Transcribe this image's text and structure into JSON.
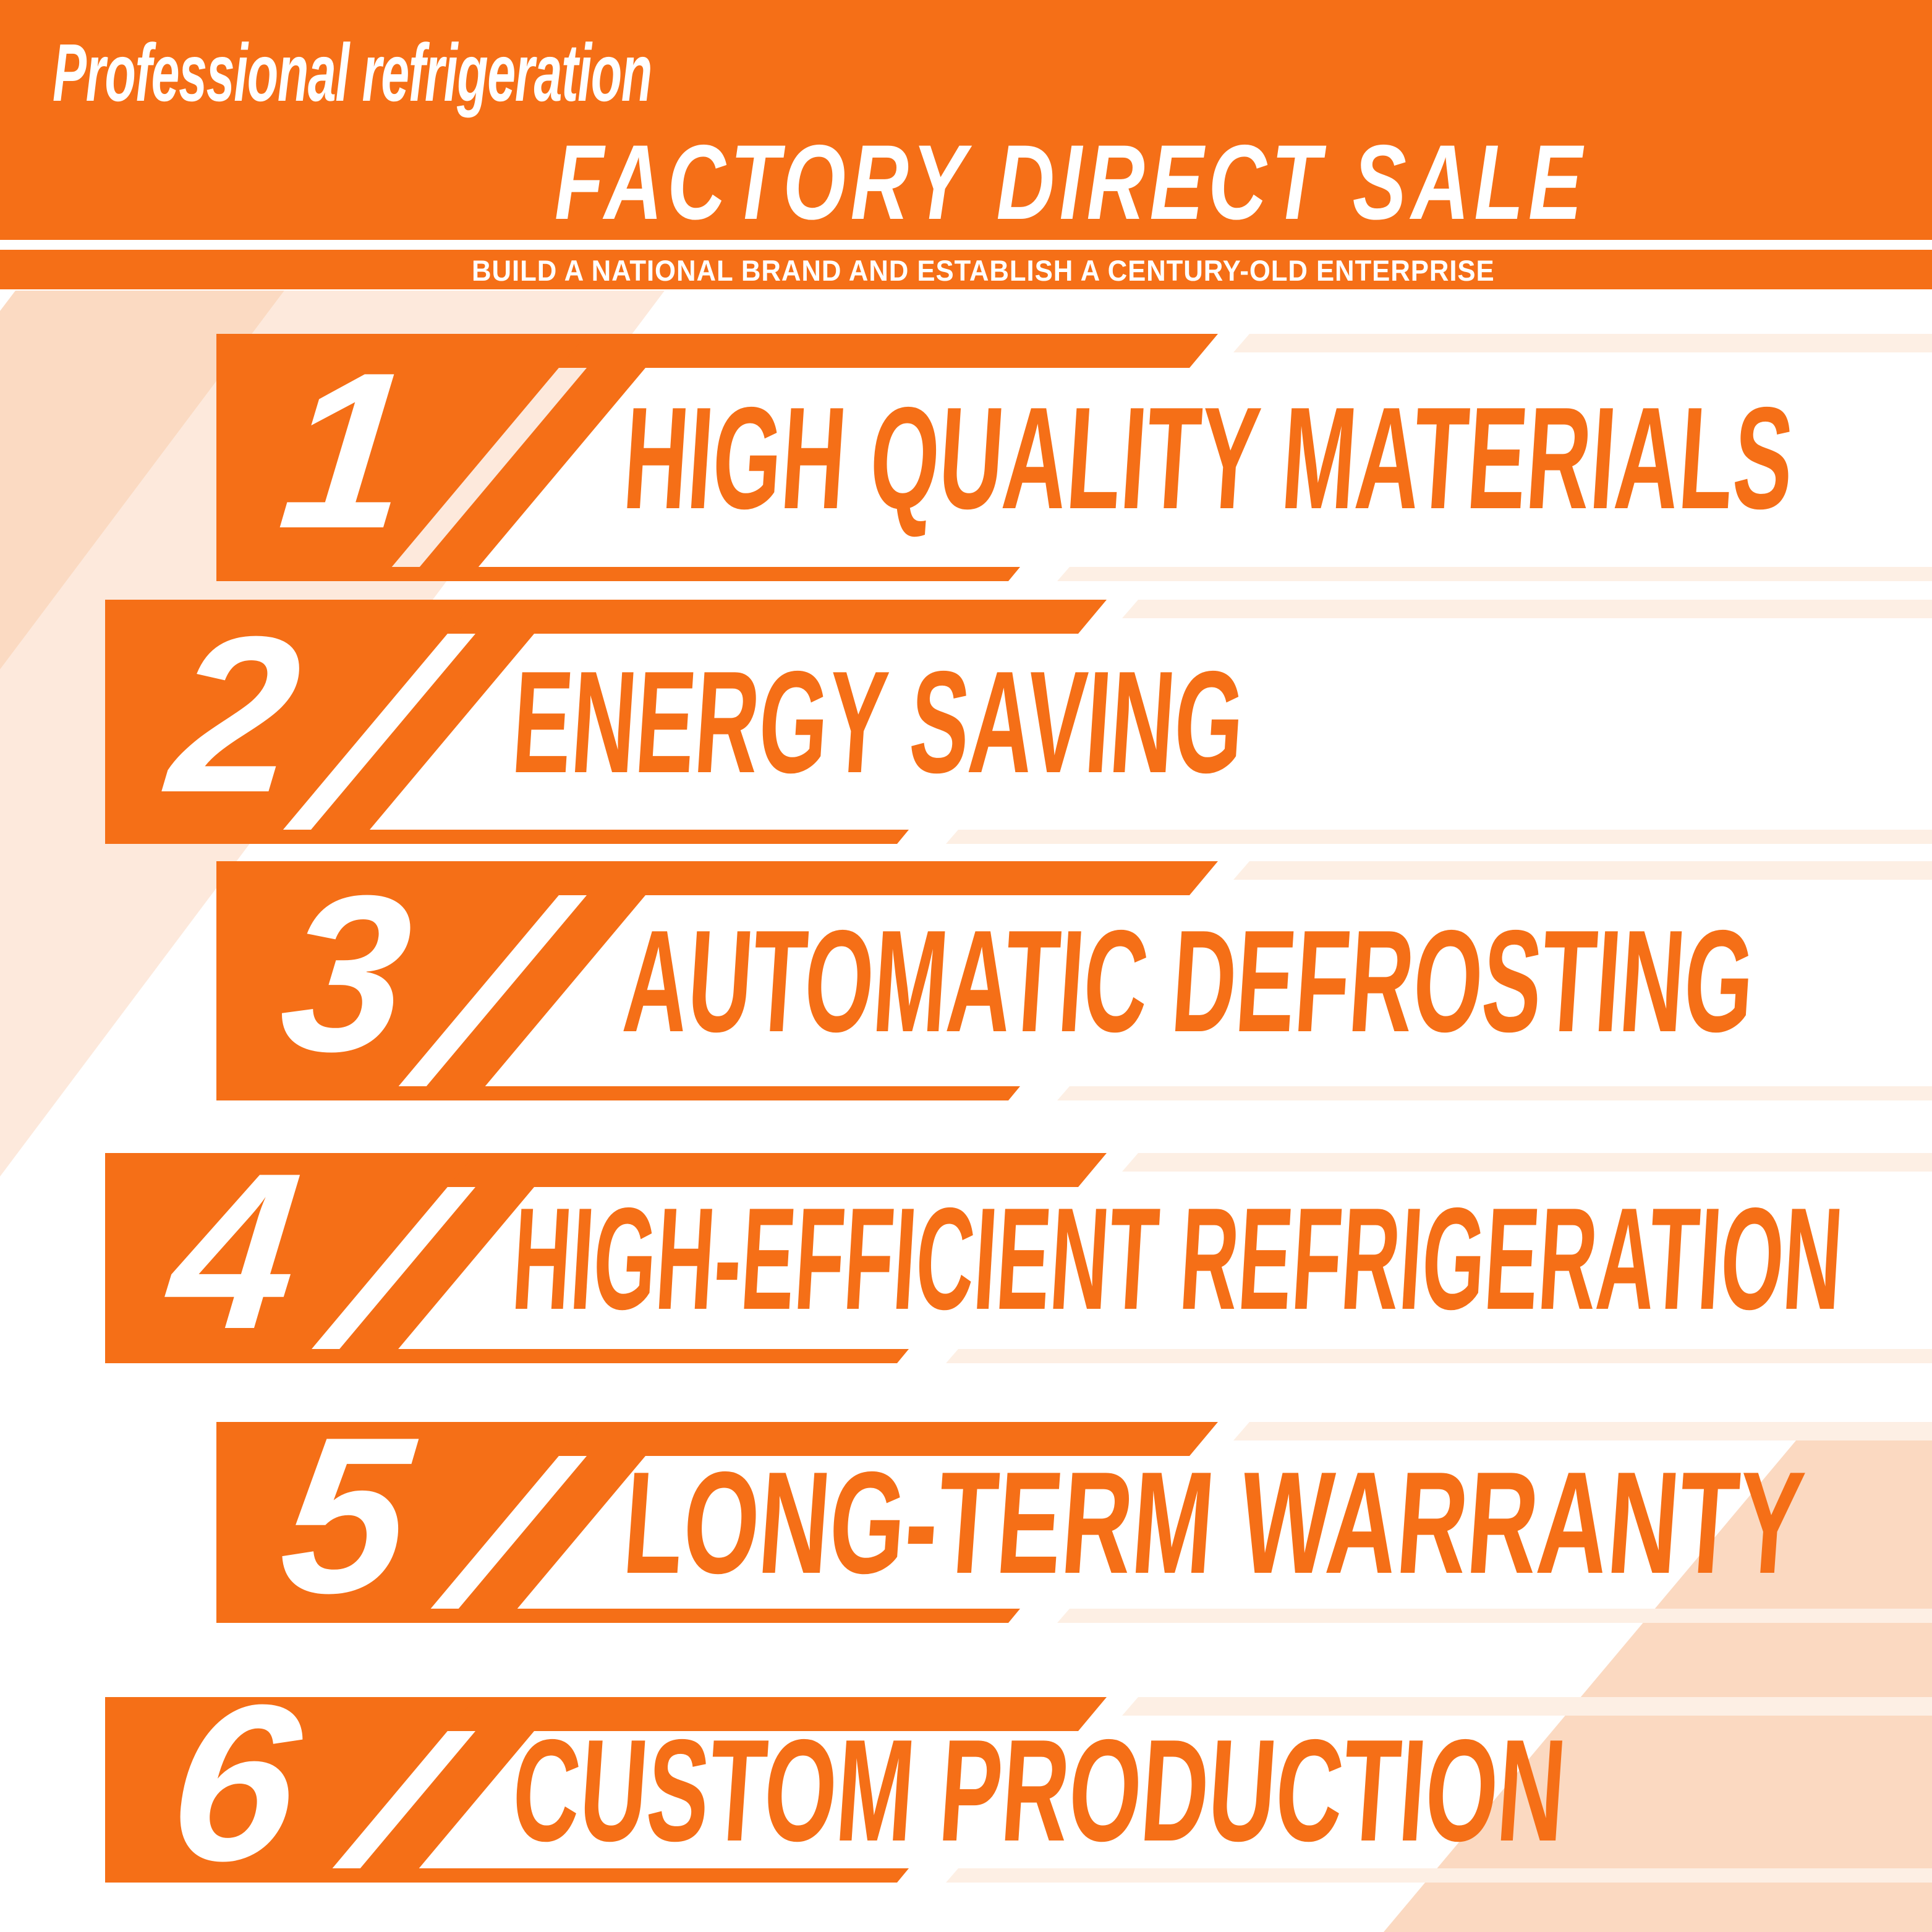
{
  "header": {
    "brand": "Professional refrigeration",
    "title": "FACTORY DIRECT SALE",
    "subtitle": "BUILD A NATIONAL BRAND AND ESTABLISH A CENTURY-OLD ENTERPRISE"
  },
  "features": [
    {
      "number": "1",
      "label": "HIGH QUALITY MATERIALS"
    },
    {
      "number": "2",
      "label": "ENERGY SAVING"
    },
    {
      "number": "3",
      "label": "AUTOMATIC DEFROSTING"
    },
    {
      "number": "4",
      "label": "HIGH-EFFICIENT REFRIGERATION"
    },
    {
      "number": "5",
      "label": "LONG-TERM WARRANTY"
    },
    {
      "number": "6",
      "label": "CUSTOM PRODUCTION"
    }
  ],
  "colors": {
    "orange": "#F56F17",
    "pale_band": "#FBDAC2",
    "pale_band_light": "#FDE9DC",
    "pale_strip": "#FDEFE4",
    "white": "#FFFFFF"
  }
}
